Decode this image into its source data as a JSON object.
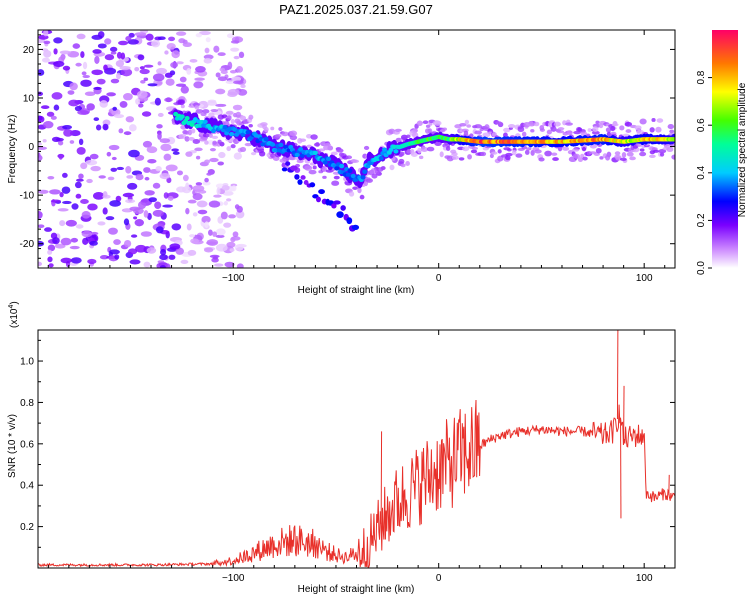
{
  "title": "PAZ1.2025.037.21.59.G07",
  "chart_data": [
    {
      "type": "heatmap",
      "name": "spectrogram",
      "xlabel": "Height of straight line (km)",
      "ylabel": "Frequency (Hz)",
      "xlim": [
        -195,
        115
      ],
      "ylim": [
        -25,
        24
      ],
      "xticks": [
        -100,
        0,
        100
      ],
      "yticks": [
        -20,
        -10,
        0,
        10,
        20
      ],
      "colorbar": {
        "label": "Normalized spectral amplitude",
        "range": [
          0,
          1
        ],
        "ticks": [
          "0.0",
          "0.2",
          "0.4",
          "0.6",
          "0.8"
        ],
        "tick_values": [
          0.0,
          0.2,
          0.4,
          0.6,
          0.8
        ]
      },
      "ridge": {
        "x": [
          -128,
          -118,
          -110,
          -100,
          -90,
          -80,
          -70,
          -60,
          -50,
          -42,
          -38,
          -34,
          -25,
          -15,
          -5,
          0,
          5,
          10,
          20,
          40,
          60,
          80,
          90,
          100,
          110,
          115
        ],
        "freq": [
          6,
          5,
          4,
          3,
          2,
          0,
          -1,
          -2,
          -4,
          -6,
          -7,
          -3,
          -1,
          0.5,
          1.5,
          2,
          1.5,
          1.5,
          1,
          1,
          1,
          1.5,
          1,
          1.5,
          1.5,
          1.5
        ],
        "amplitude": [
          0.5,
          0.45,
          0.4,
          0.4,
          0.35,
          0.35,
          0.35,
          0.4,
          0.35,
          0.35,
          0.35,
          0.4,
          0.4,
          0.5,
          0.6,
          0.55,
          0.6,
          0.75,
          0.9,
          0.85,
          0.8,
          0.85,
          0.7,
          0.8,
          0.75,
          0.7
        ]
      },
      "secondary_branch": {
        "x": [
          -75,
          -65,
          -58,
          -52,
          -45,
          -40
        ],
        "freq": [
          -4,
          -7,
          -10,
          -12,
          -14,
          -18
        ]
      },
      "noise_region": {
        "xmin": -195,
        "xmax": -105
      }
    },
    {
      "type": "line",
      "name": "snr",
      "xlabel": "Height of straight line (km)",
      "ylabel": "SNR (10 * v/v)",
      "scale_note": "(x10^4)",
      "xlim": [
        -195,
        115
      ],
      "ylim": [
        0,
        1.15
      ],
      "xticks": [
        -100,
        0,
        100
      ],
      "yticks": [
        0.2,
        0.4,
        0.6,
        0.8,
        1.0
      ],
      "color": "#e8302a",
      "series": [
        {
          "x": [
            -195,
            -170,
            -140,
            -110,
            -100,
            -95,
            -90,
            -85,
            -80,
            -75,
            -70,
            -65,
            -60,
            -55,
            -50,
            -45,
            -40,
            -35,
            -30,
            -25,
            -20,
            -15,
            -10,
            -5,
            0,
            5,
            10,
            15,
            20,
            25,
            30,
            40,
            50,
            60,
            70,
            80,
            85,
            88,
            90,
            95,
            100,
            101,
            105,
            110,
            115
          ],
          "y": [
            0.015,
            0.015,
            0.015,
            0.02,
            0.035,
            0.05,
            0.07,
            0.09,
            0.11,
            0.12,
            0.13,
            0.12,
            0.11,
            0.08,
            0.06,
            0.05,
            0.07,
            0.1,
            0.18,
            0.26,
            0.32,
            0.36,
            0.4,
            0.44,
            0.48,
            0.5,
            0.54,
            0.57,
            0.59,
            0.62,
            0.64,
            0.66,
            0.67,
            0.66,
            0.66,
            0.64,
            0.66,
            0.75,
            0.62,
            0.64,
            0.64,
            0.36,
            0.34,
            0.36,
            0.34
          ]
        }
      ],
      "spikes": [
        {
          "x": -28,
          "y": 0.66
        },
        {
          "x": 87,
          "y": 1.15
        },
        {
          "x": 88.5,
          "y": 0.24
        },
        {
          "x": 90,
          "y": 0.88
        },
        {
          "x": 112,
          "y": 0.45
        }
      ]
    }
  ]
}
